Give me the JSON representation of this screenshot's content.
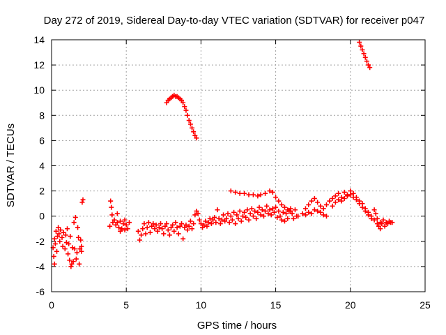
{
  "chart_data": {
    "type": "scatter",
    "title": "Day 272 of 2019, Sidereal Day-to-day VTEC variation (SDTVAR) for receiver p047",
    "xlabel": "GPS time / hours",
    "ylabel": "SDTVAR / TECUs",
    "xlim": [
      0,
      25
    ],
    "ylim": [
      -6,
      14
    ],
    "x_ticks": [
      0,
      5,
      10,
      15,
      20,
      25
    ],
    "y_ticks": [
      -6,
      -4,
      -2,
      0,
      2,
      4,
      6,
      8,
      10,
      12,
      14
    ],
    "grid": true,
    "marker": "+",
    "color": "#ff0000",
    "series": [
      {
        "name": "SDTVAR",
        "points": [
          [
            0.1,
            -2.5
          ],
          [
            0.15,
            -3.2
          ],
          [
            0.2,
            -3.8
          ],
          [
            0.2,
            -1.8
          ],
          [
            0.25,
            -2.2
          ],
          [
            0.3,
            -1.2
          ],
          [
            0.35,
            -2.8
          ],
          [
            0.4,
            -1.6
          ],
          [
            0.45,
            -0.9
          ],
          [
            0.5,
            -1.4
          ],
          [
            0.55,
            -2.0
          ],
          [
            0.6,
            -1.1
          ],
          [
            0.7,
            -1.7
          ],
          [
            0.75,
            -2.4
          ],
          [
            0.8,
            -1.3
          ],
          [
            0.9,
            -2.6
          ],
          [
            0.95,
            -1.5
          ],
          [
            1.0,
            -2.1
          ],
          [
            1.05,
            -1.0
          ],
          [
            1.1,
            -3.0
          ],
          [
            1.15,
            -2.2
          ],
          [
            1.2,
            -3.5
          ],
          [
            1.25,
            -1.6
          ],
          [
            1.3,
            -4.0
          ],
          [
            1.35,
            -3.8
          ],
          [
            1.4,
            -2.5
          ],
          [
            1.45,
            -3.6
          ],
          [
            1.5,
            -0.5
          ],
          [
            1.55,
            -2.6
          ],
          [
            1.6,
            -0.1
          ],
          [
            1.65,
            -3.4
          ],
          [
            1.7,
            -2.9
          ],
          [
            1.75,
            -0.9
          ],
          [
            1.8,
            -1.7
          ],
          [
            1.85,
            -3.8
          ],
          [
            1.9,
            -2.6
          ],
          [
            1.95,
            -1.9
          ],
          [
            2.0,
            -2.4
          ],
          [
            2.05,
            1.1
          ],
          [
            2.1,
            1.3
          ],
          [
            2.0,
            -2.8
          ],
          [
            3.9,
            -0.8
          ],
          [
            3.95,
            1.2
          ],
          [
            4.0,
            0.7
          ],
          [
            4.05,
            0.1
          ],
          [
            4.1,
            -0.5
          ],
          [
            4.2,
            -0.3
          ],
          [
            4.3,
            -0.7
          ],
          [
            4.4,
            -0.5
          ],
          [
            4.5,
            -0.9
          ],
          [
            4.6,
            -0.4
          ],
          [
            4.7,
            -1.0
          ],
          [
            4.8,
            -0.6
          ],
          [
            4.9,
            -1.1
          ],
          [
            5.0,
            -0.7
          ],
          [
            5.1,
            -1.0
          ],
          [
            5.2,
            -0.5
          ],
          [
            4.4,
            0.2
          ],
          [
            4.6,
            -1.2
          ],
          [
            4.9,
            -0.3
          ],
          [
            5.8,
            -1.2
          ],
          [
            5.9,
            -1.9
          ],
          [
            6.0,
            -1.5
          ],
          [
            6.1,
            -1.0
          ],
          [
            6.2,
            -0.6
          ],
          [
            6.3,
            -1.4
          ],
          [
            6.4,
            -0.9
          ],
          [
            6.5,
            -0.5
          ],
          [
            6.6,
            -1.3
          ],
          [
            6.7,
            -0.8
          ],
          [
            6.8,
            -0.6
          ],
          [
            6.9,
            -1.0
          ],
          [
            7.0,
            -0.7
          ],
          [
            7.1,
            -1.2
          ],
          [
            7.2,
            -0.9
          ],
          [
            7.3,
            -0.6
          ],
          [
            7.4,
            -1.0
          ],
          [
            7.5,
            -1.4
          ],
          [
            7.6,
            -0.8
          ],
          [
            7.7,
            -0.6
          ],
          [
            7.8,
            -1.1
          ],
          [
            7.9,
            -1.5
          ],
          [
            8.0,
            -0.9
          ],
          [
            8.1,
            -0.7
          ],
          [
            8.2,
            -1.2
          ],
          [
            8.3,
            -0.5
          ],
          [
            8.4,
            -0.9
          ],
          [
            8.5,
            -1.4
          ],
          [
            8.6,
            -0.8
          ],
          [
            8.7,
            -0.6
          ],
          [
            8.8,
            -1.8
          ],
          [
            8.9,
            -0.9
          ],
          [
            9.0,
            -0.7
          ],
          [
            9.1,
            -1.1
          ],
          [
            9.2,
            -0.8
          ],
          [
            9.3,
            -0.4
          ],
          [
            9.4,
            -1.0
          ],
          [
            9.5,
            -0.6
          ],
          [
            9.6,
            0.1
          ],
          [
            9.7,
            0.4
          ],
          [
            9.8,
            0.2
          ],
          [
            9.9,
            -0.3
          ],
          [
            10.0,
            -0.6
          ],
          [
            10.1,
            -0.9
          ],
          [
            10.2,
            -0.7
          ],
          [
            10.3,
            -0.4
          ],
          [
            10.4,
            -0.8
          ],
          [
            10.5,
            -0.5
          ],
          [
            10.6,
            -0.2
          ],
          [
            10.7,
            -0.6
          ],
          [
            10.8,
            -0.3
          ],
          [
            10.9,
            -0.1
          ],
          [
            11.0,
            -0.5
          ],
          [
            11.1,
            0.5
          ],
          [
            11.2,
            -0.2
          ],
          [
            11.3,
            -0.6
          ],
          [
            11.4,
            -0.3
          ],
          [
            11.5,
            0.1
          ],
          [
            11.6,
            -0.4
          ],
          [
            11.7,
            -0.2
          ],
          [
            11.8,
            0.2
          ],
          [
            11.9,
            -0.5
          ],
          [
            12.0,
            0.0
          ],
          [
            12.1,
            -0.3
          ],
          [
            12.2,
            0.3
          ],
          [
            12.3,
            -0.6
          ],
          [
            12.4,
            0.1
          ],
          [
            12.5,
            -0.2
          ],
          [
            12.6,
            0.4
          ],
          [
            12.7,
            -0.4
          ],
          [
            12.8,
            0.0
          ],
          [
            12.9,
            0.3
          ],
          [
            13.0,
            -0.1
          ],
          [
            13.1,
            0.5
          ],
          [
            13.2,
            -0.3
          ],
          [
            13.3,
            0.2
          ],
          [
            13.4,
            0.6
          ],
          [
            13.5,
            0.0
          ],
          [
            13.6,
            0.4
          ],
          [
            13.7,
            -0.2
          ],
          [
            13.8,
            0.3
          ],
          [
            13.9,
            0.7
          ],
          [
            14.0,
            0.1
          ],
          [
            14.1,
            0.5
          ],
          [
            14.2,
            0.0
          ],
          [
            14.3,
            0.4
          ],
          [
            14.4,
            0.8
          ],
          [
            14.5,
            0.2
          ],
          [
            14.6,
            0.5
          ],
          [
            14.7,
            0.1
          ],
          [
            14.8,
            0.6
          ],
          [
            14.9,
            0.3
          ],
          [
            15.0,
            0.7
          ],
          [
            15.1,
            -0.1
          ],
          [
            15.2,
            0.4
          ],
          [
            15.3,
            0.0
          ],
          [
            15.4,
            -0.3
          ],
          [
            15.5,
            0.3
          ],
          [
            15.6,
            -0.4
          ],
          [
            15.7,
            0.2
          ],
          [
            15.8,
            -0.2
          ],
          [
            15.9,
            0.4
          ],
          [
            16.0,
            0.6
          ],
          [
            16.1,
            0.2
          ],
          [
            16.2,
            -0.2
          ],
          [
            16.3,
            0.5
          ],
          [
            16.4,
            0.0
          ],
          [
            12.0,
            2.0
          ],
          [
            12.3,
            1.9
          ],
          [
            12.6,
            1.8
          ],
          [
            12.9,
            1.8
          ],
          [
            13.2,
            1.7
          ],
          [
            13.5,
            1.7
          ],
          [
            13.8,
            1.6
          ],
          [
            14.0,
            1.7
          ],
          [
            14.3,
            1.8
          ],
          [
            14.6,
            2.0
          ],
          [
            14.8,
            1.9
          ],
          [
            15.0,
            1.5
          ],
          [
            15.2,
            1.2
          ],
          [
            15.4,
            0.9
          ],
          [
            15.6,
            0.7
          ],
          [
            15.8,
            0.5
          ],
          [
            16.0,
            0.4
          ],
          [
            16.5,
            0.0
          ],
          [
            16.8,
            0.2
          ],
          [
            17.0,
            0.1
          ],
          [
            17.2,
            0.3
          ],
          [
            17.4,
            0.2
          ],
          [
            17.6,
            0.5
          ],
          [
            17.8,
            0.4
          ],
          [
            18.0,
            0.3
          ],
          [
            18.2,
            0.1
          ],
          [
            18.4,
            0.0
          ],
          [
            17.0,
            0.6
          ],
          [
            17.2,
            0.9
          ],
          [
            17.4,
            1.2
          ],
          [
            17.6,
            1.4
          ],
          [
            17.8,
            1.1
          ],
          [
            18.0,
            0.8
          ],
          [
            18.2,
            0.6
          ],
          [
            18.4,
            0.9
          ],
          [
            18.6,
            1.2
          ],
          [
            18.8,
            1.4
          ],
          [
            19.0,
            1.6
          ],
          [
            19.2,
            1.8
          ],
          [
            19.4,
            1.5
          ],
          [
            19.6,
            1.9
          ],
          [
            19.8,
            1.7
          ],
          [
            20.0,
            2.0
          ],
          [
            20.2,
            1.8
          ],
          [
            20.4,
            1.5
          ],
          [
            20.6,
            1.2
          ],
          [
            20.8,
            1.0
          ],
          [
            21.0,
            0.6
          ],
          [
            21.2,
            0.3
          ],
          [
            21.4,
            0.0
          ],
          [
            21.6,
            -0.3
          ],
          [
            21.8,
            -0.6
          ],
          [
            22.0,
            -0.5
          ],
          [
            18.8,
            0.8
          ],
          [
            19.0,
            1.1
          ],
          [
            19.2,
            1.3
          ],
          [
            19.4,
            1.2
          ],
          [
            19.6,
            1.4
          ],
          [
            19.8,
            1.6
          ],
          [
            20.0,
            1.7
          ],
          [
            20.2,
            1.5
          ],
          [
            20.4,
            1.3
          ],
          [
            20.6,
            1.0
          ],
          [
            20.8,
            0.7
          ],
          [
            21.0,
            0.4
          ],
          [
            21.2,
            0.1
          ],
          [
            21.4,
            -0.2
          ],
          [
            21.6,
            0.5
          ],
          [
            21.7,
            0.2
          ],
          [
            21.8,
            -0.2
          ],
          [
            21.9,
            -0.8
          ],
          [
            22.0,
            -1.0
          ],
          [
            22.1,
            -0.6
          ],
          [
            22.2,
            -0.3
          ],
          [
            22.3,
            -0.8
          ],
          [
            22.4,
            -0.5
          ],
          [
            22.5,
            -0.6
          ],
          [
            22.6,
            -0.4
          ],
          [
            22.7,
            -0.5
          ],
          [
            22.8,
            -0.5
          ],
          [
            7.7,
            9.0
          ],
          [
            7.8,
            9.2
          ],
          [
            7.9,
            9.3
          ],
          [
            8.0,
            9.4
          ],
          [
            8.1,
            9.5
          ],
          [
            8.2,
            9.6
          ],
          [
            8.3,
            9.5
          ],
          [
            8.4,
            9.5
          ],
          [
            8.5,
            9.4
          ],
          [
            8.6,
            9.3
          ],
          [
            8.7,
            9.2
          ],
          [
            8.8,
            9.0
          ],
          [
            8.9,
            8.7
          ],
          [
            9.0,
            8.4
          ],
          [
            9.1,
            8.0
          ],
          [
            9.2,
            7.6
          ],
          [
            9.3,
            7.3
          ],
          [
            9.4,
            7.0
          ],
          [
            9.5,
            6.7
          ],
          [
            9.6,
            6.4
          ],
          [
            9.7,
            6.2
          ],
          [
            20.6,
            13.8
          ],
          [
            20.7,
            13.5
          ],
          [
            20.8,
            13.2
          ],
          [
            20.9,
            12.9
          ],
          [
            21.0,
            12.6
          ],
          [
            21.1,
            12.3
          ],
          [
            21.2,
            12.0
          ],
          [
            21.3,
            11.8
          ]
        ]
      }
    ]
  }
}
